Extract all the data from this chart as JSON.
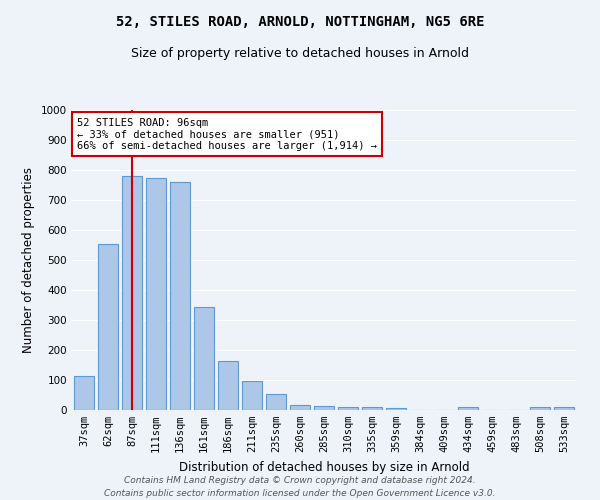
{
  "title": "52, STILES ROAD, ARNOLD, NOTTINGHAM, NG5 6RE",
  "subtitle": "Size of property relative to detached houses in Arnold",
  "xlabel": "Distribution of detached houses by size in Arnold",
  "ylabel": "Number of detached properties",
  "footer_line1": "Contains HM Land Registry data © Crown copyright and database right 2024.",
  "footer_line2": "Contains public sector information licensed under the Open Government Licence v3.0.",
  "categories": [
    "37sqm",
    "62sqm",
    "87sqm",
    "111sqm",
    "136sqm",
    "161sqm",
    "186sqm",
    "211sqm",
    "235sqm",
    "260sqm",
    "285sqm",
    "310sqm",
    "335sqm",
    "359sqm",
    "384sqm",
    "409sqm",
    "434sqm",
    "459sqm",
    "483sqm",
    "508sqm",
    "533sqm"
  ],
  "values": [
    112,
    555,
    780,
    775,
    760,
    345,
    165,
    97,
    53,
    18,
    12,
    10,
    10,
    7,
    0,
    0,
    10,
    0,
    0,
    10,
    10
  ],
  "bar_color": "#aec6e8",
  "bar_edge_color": "#5b9bd5",
  "vline_x": 2,
  "vline_color": "#cc0000",
  "annotation_text": "52 STILES ROAD: 96sqm\n← 33% of detached houses are smaller (951)\n66% of semi-detached houses are larger (1,914) →",
  "annotation_box_color": "#ffffff",
  "annotation_box_edge": "#cc0000",
  "ylim": [
    0,
    1000
  ],
  "yticks": [
    0,
    100,
    200,
    300,
    400,
    500,
    600,
    700,
    800,
    900,
    1000
  ],
  "bg_color": "#eef2f9",
  "grid_color": "#ffffff",
  "title_fontsize": 10,
  "subtitle_fontsize": 9,
  "axis_label_fontsize": 8.5,
  "tick_fontsize": 7.5,
  "footer_fontsize": 6.5
}
